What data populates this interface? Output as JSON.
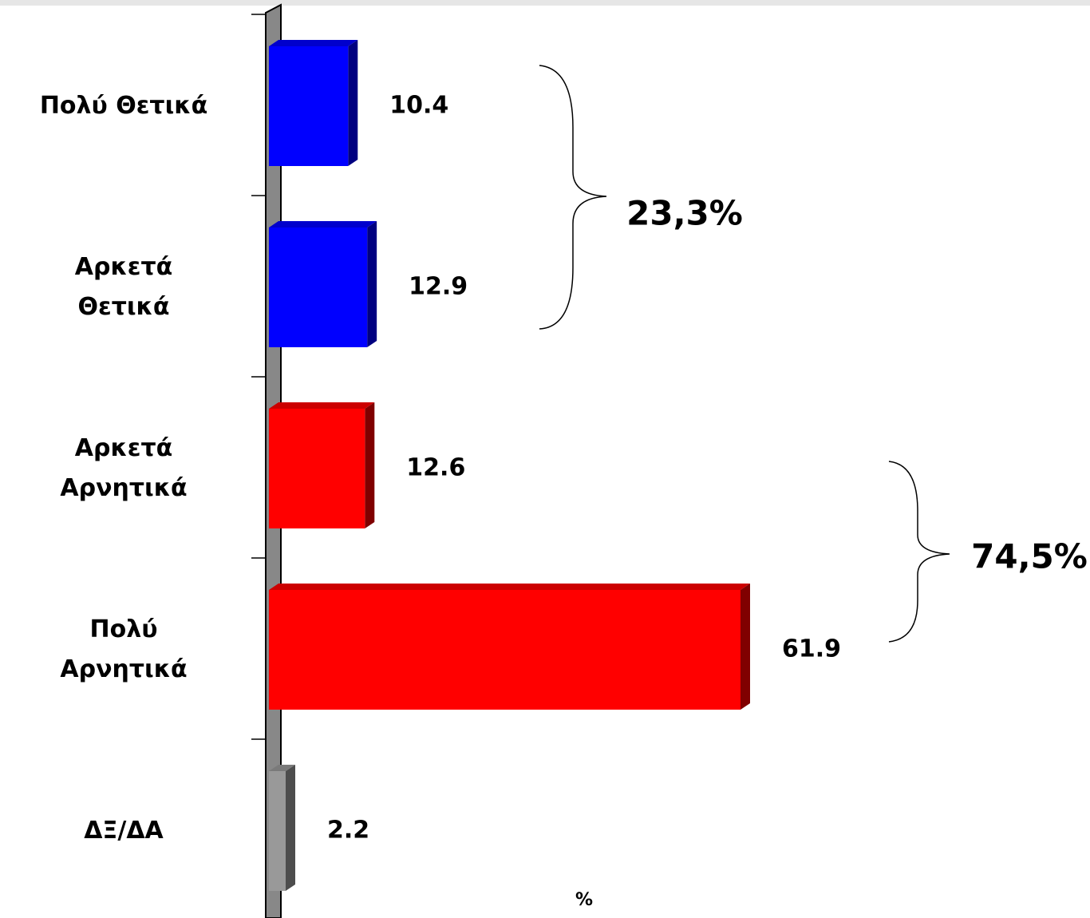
{
  "chart_data": {
    "type": "bar",
    "orientation": "horizontal",
    "categories": [
      "Πολύ Θετικά",
      "Αρκετά\nΘετικά",
      "Αρκετά\nΑρνητικά",
      "Πολύ\nΑρνητικά",
      "ΔΞ/ΔΑ"
    ],
    "values": [
      10.4,
      12.9,
      12.6,
      61.9,
      2.2
    ],
    "colors": [
      "#0000ff",
      "#0000ff",
      "#ff0000",
      "#ff0000",
      "#999999"
    ],
    "x_label": "%",
    "annotations": [
      "23,3%",
      "74,5%"
    ]
  }
}
